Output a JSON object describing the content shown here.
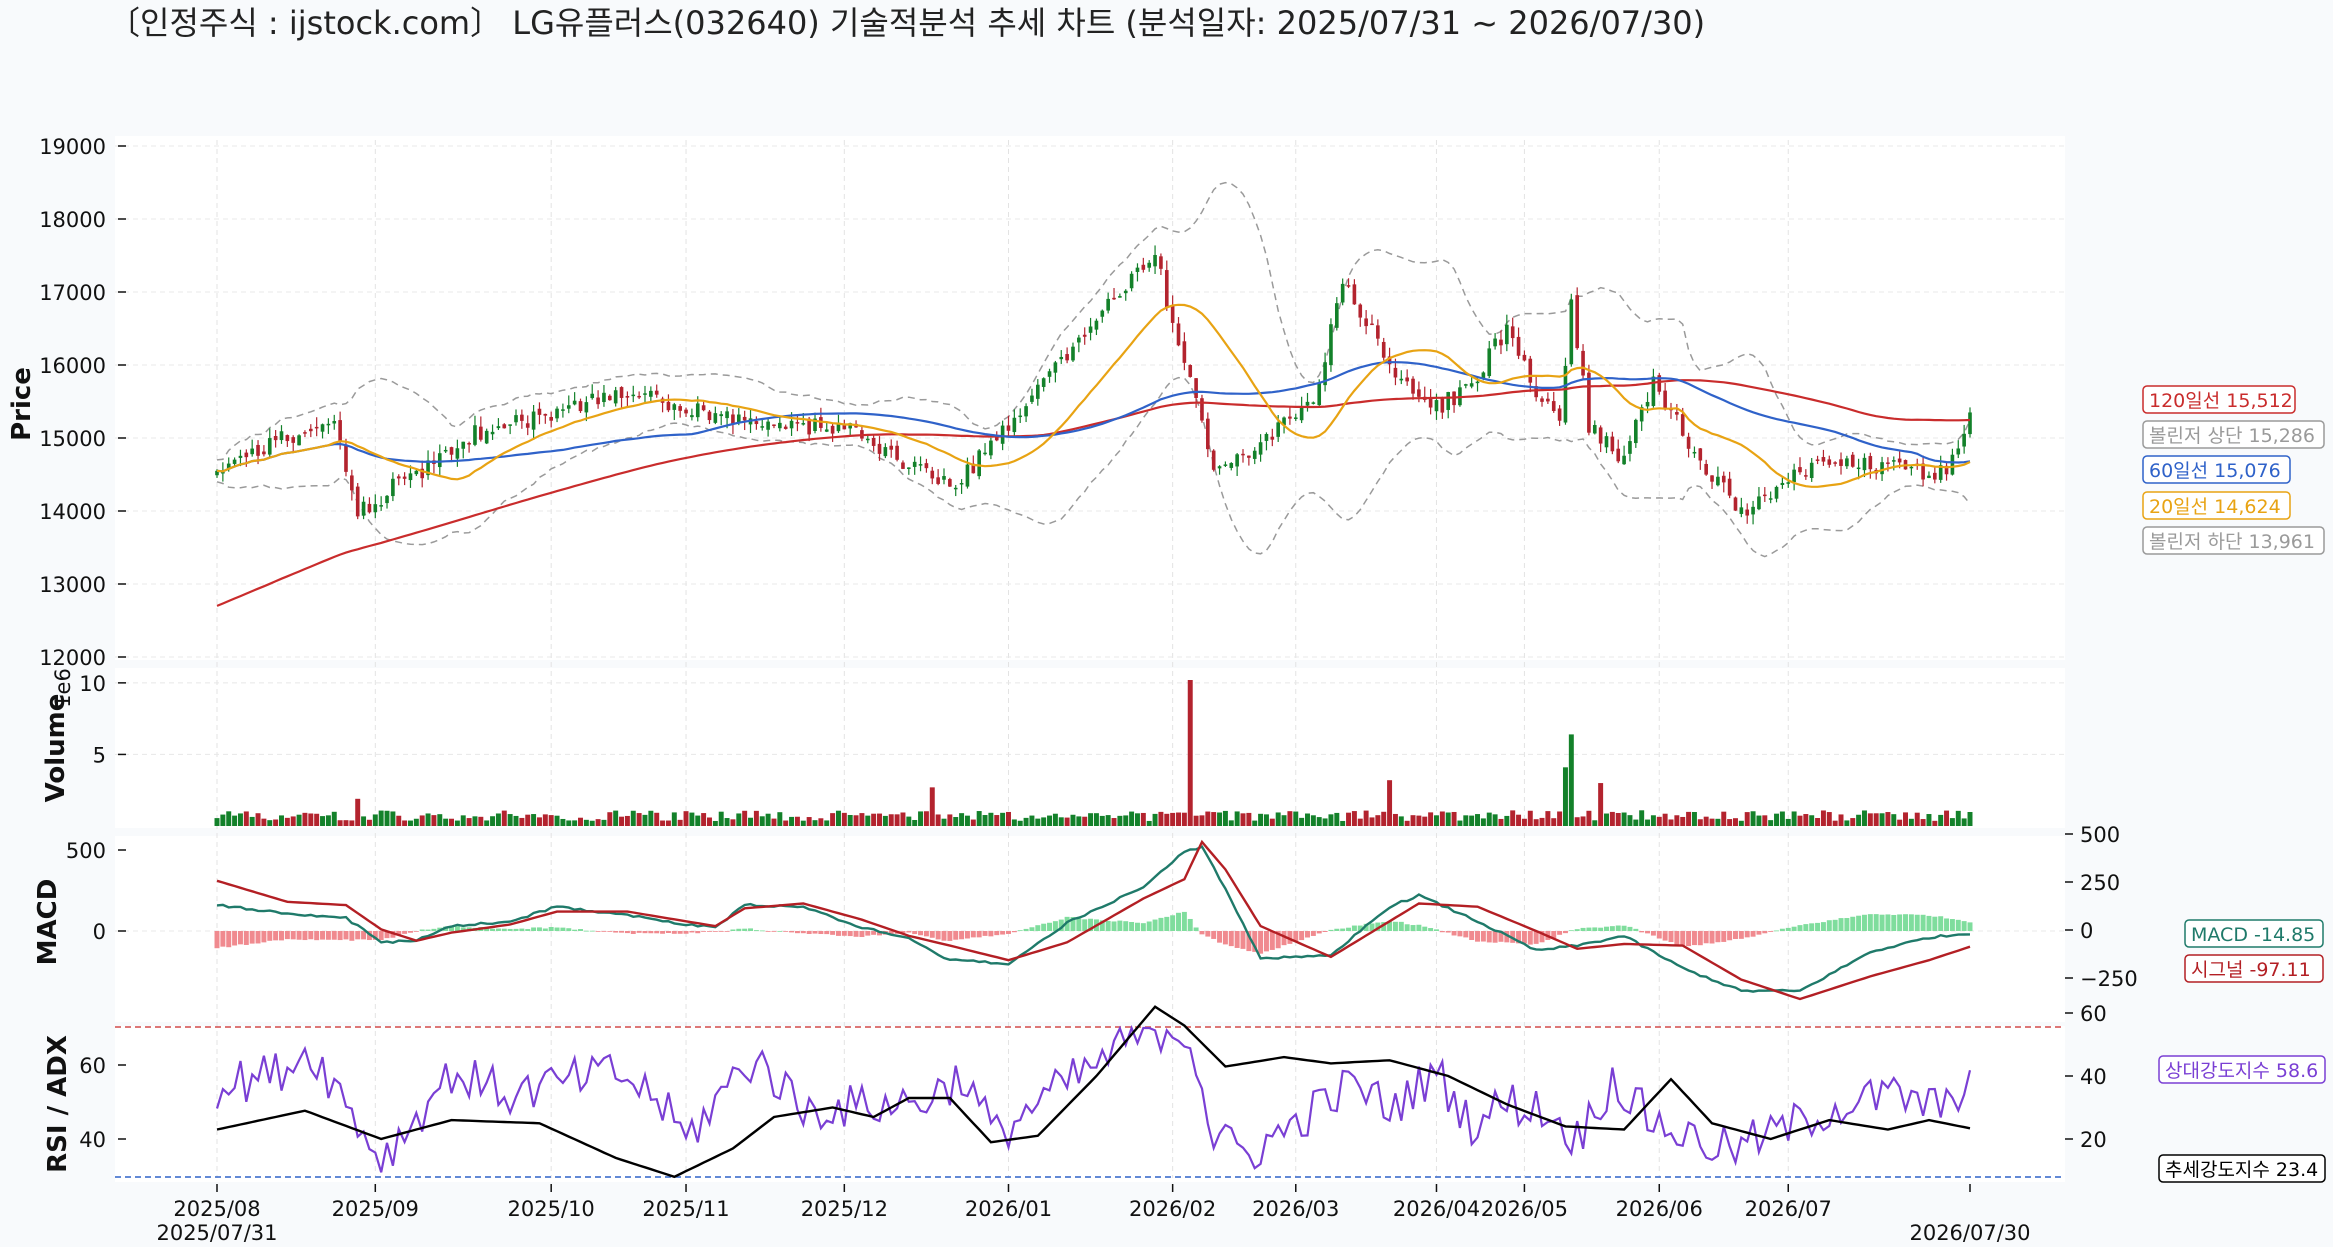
{
  "title": "〔인정주식 : ijstock.com〕 LG유플러스(032640) 기술적분석 추세 차트 (분석일자: 2025/07/31 ~ 2026/07/30)",
  "colors": {
    "up": "#13812a",
    "down": "#b3232e",
    "ma20": "#e8a313",
    "ma60": "#2f62c9",
    "ma120": "#c92c2c",
    "boll": "#9a9a9a",
    "macd": "#1f7a6a",
    "signal": "#b31f24",
    "hist_pos": "#7fdd9d",
    "hist_neg": "#f08a8f",
    "rsi": "#7a3fd4",
    "adx": "#000000",
    "upper_ref": "#d24a4a",
    "lower_ref": "#2f62c9"
  },
  "chart_data": [
    {
      "type": "candlestick",
      "ylabel": "Price",
      "ylim": [
        12000,
        19000
      ],
      "yticks": [
        "12000",
        "13000",
        "14000",
        "15000",
        "16000",
        "17000",
        "18000",
        "19000"
      ],
      "start_date": "2025/07/31",
      "end_date": "2026/07/30",
      "key_points": [
        {
          "x": 0,
          "close": 14600
        },
        {
          "x": 20,
          "close": 15300
        },
        {
          "x": 24,
          "close": 14000
        },
        {
          "x": 45,
          "close": 15100
        },
        {
          "x": 70,
          "close": 15600
        },
        {
          "x": 92,
          "close": 15200
        },
        {
          "x": 108,
          "close": 15150
        },
        {
          "x": 125,
          "close": 14300
        },
        {
          "x": 140,
          "close": 15600
        },
        {
          "x": 150,
          "close": 16700
        },
        {
          "x": 160,
          "close": 17500
        },
        {
          "x": 165,
          "close": 16000
        },
        {
          "x": 170,
          "close": 14600
        },
        {
          "x": 180,
          "close": 15000
        },
        {
          "x": 188,
          "close": 15700
        },
        {
          "x": 192,
          "close": 17200
        },
        {
          "x": 200,
          "close": 16000
        },
        {
          "x": 208,
          "close": 15400
        },
        {
          "x": 214,
          "close": 15700
        },
        {
          "x": 220,
          "close": 16500
        },
        {
          "x": 225,
          "close": 15600
        },
        {
          "x": 229,
          "close": 15300
        },
        {
          "x": 231,
          "close": 16900
        },
        {
          "x": 234,
          "close": 15200
        },
        {
          "x": 240,
          "close": 14700
        },
        {
          "x": 245,
          "close": 15800
        },
        {
          "x": 252,
          "close": 14800
        },
        {
          "x": 260,
          "close": 14000
        },
        {
          "x": 268,
          "close": 14400
        },
        {
          "x": 275,
          "close": 14700
        },
        {
          "x": 285,
          "close": 14600
        },
        {
          "x": 295,
          "close": 14500
        },
        {
          "x": 299,
          "close": 15350
        }
      ],
      "series": [
        {
          "name": "120일선",
          "last": 15512
        },
        {
          "name": "볼린저 상단",
          "last": 15286
        },
        {
          "name": "60일선",
          "last": 15076
        },
        {
          "name": "20일선",
          "last": 14624
        },
        {
          "name": "볼린저 하단",
          "last": 13961
        }
      ]
    },
    {
      "type": "bar",
      "ylabel": "Volume",
      "exponent_label": "1e6",
      "ylim": [
        0,
        10.5
      ],
      "yticks": [
        "5",
        "10"
      ],
      "spikes": [
        {
          "x": 24,
          "value": 1.9
        },
        {
          "x": 122,
          "value": 2.7
        },
        {
          "x": 166,
          "value": 10.2
        },
        {
          "x": 200,
          "value": 3.2
        },
        {
          "x": 230,
          "value": 4.1
        },
        {
          "x": 231,
          "value": 6.4
        },
        {
          "x": 236,
          "value": 3.0
        }
      ]
    },
    {
      "type": "line",
      "ylabel": "MACD",
      "ylim": [
        -370,
        580
      ],
      "left_yticks": [
        "0",
        "500"
      ],
      "right_yticks": [
        "−250",
        "0",
        "250",
        "500"
      ],
      "key_points": [
        {
          "x": 0,
          "macd": 160,
          "signal": 310
        },
        {
          "x": 12,
          "macd": 110,
          "signal": 180
        },
        {
          "x": 22,
          "macd": 80,
          "signal": 160
        },
        {
          "x": 28,
          "macd": -70,
          "signal": 10
        },
        {
          "x": 34,
          "macd": -60,
          "signal": -60
        },
        {
          "x": 40,
          "macd": 30,
          "signal": -10
        },
        {
          "x": 50,
          "macd": 60,
          "signal": 40
        },
        {
          "x": 58,
          "macd": 150,
          "signal": 120
        },
        {
          "x": 70,
          "macd": 100,
          "signal": 120
        },
        {
          "x": 80,
          "macd": 40,
          "signal": 60
        },
        {
          "x": 85,
          "macd": 20,
          "signal": 30
        },
        {
          "x": 90,
          "macd": 160,
          "signal": 140
        },
        {
          "x": 100,
          "macd": 150,
          "signal": 170
        },
        {
          "x": 110,
          "macd": 20,
          "signal": 70
        },
        {
          "x": 118,
          "macd": -40,
          "signal": -30
        },
        {
          "x": 125,
          "macd": -180,
          "signal": -90
        },
        {
          "x": 135,
          "macd": -200,
          "signal": -180
        },
        {
          "x": 145,
          "macd": 50,
          "signal": -70
        },
        {
          "x": 158,
          "macd": 270,
          "signal": 200
        },
        {
          "x": 165,
          "macd": 490,
          "signal": 320
        },
        {
          "x": 168,
          "macd": 520,
          "signal": 550
        },
        {
          "x": 172,
          "macd": 260,
          "signal": 380
        },
        {
          "x": 178,
          "macd": -170,
          "signal": 30
        },
        {
          "x": 190,
          "macd": -150,
          "signal": -160
        },
        {
          "x": 200,
          "macd": 150,
          "signal": 60
        },
        {
          "x": 205,
          "macd": 220,
          "signal": 170
        },
        {
          "x": 215,
          "macd": 60,
          "signal": 150
        },
        {
          "x": 225,
          "macd": -120,
          "signal": 0
        },
        {
          "x": 232,
          "macd": -90,
          "signal": -110
        },
        {
          "x": 240,
          "macd": -30,
          "signal": -80
        },
        {
          "x": 250,
          "macd": -230,
          "signal": -90
        },
        {
          "x": 260,
          "macd": -370,
          "signal": -300
        },
        {
          "x": 270,
          "macd": -370,
          "signal": -420
        },
        {
          "x": 282,
          "macd": -130,
          "signal": -280
        },
        {
          "x": 292,
          "macd": -40,
          "signal": -180
        },
        {
          "x": 299,
          "macd": -15,
          "signal": -97
        }
      ],
      "series": [
        {
          "name": "MACD",
          "last": -14.85
        },
        {
          "name": "시그널",
          "last": -97.11
        }
      ]
    },
    {
      "type": "line",
      "ylabel": "RSI / ADX",
      "left_ylim": [
        29,
        71
      ],
      "left_yticks": [
        "40",
        "60"
      ],
      "right_ylim": [
        7,
        69
      ],
      "right_yticks": [
        "20",
        "40",
        "60"
      ],
      "upper_ref": 70,
      "lower_ref": 30,
      "rsi_key_points": [
        {
          "x": 0,
          "v": 54
        },
        {
          "x": 10,
          "v": 58
        },
        {
          "x": 16,
          "v": 64
        },
        {
          "x": 22,
          "v": 50
        },
        {
          "x": 28,
          "v": 34
        },
        {
          "x": 40,
          "v": 58
        },
        {
          "x": 50,
          "v": 52
        },
        {
          "x": 58,
          "v": 55
        },
        {
          "x": 68,
          "v": 58
        },
        {
          "x": 75,
          "v": 51
        },
        {
          "x": 80,
          "v": 40
        },
        {
          "x": 88,
          "v": 56
        },
        {
          "x": 92,
          "v": 62
        },
        {
          "x": 100,
          "v": 48
        },
        {
          "x": 110,
          "v": 49
        },
        {
          "x": 120,
          "v": 50
        },
        {
          "x": 127,
          "v": 57
        },
        {
          "x": 133,
          "v": 41
        },
        {
          "x": 140,
          "v": 50
        },
        {
          "x": 150,
          "v": 60
        },
        {
          "x": 157,
          "v": 68
        },
        {
          "x": 162,
          "v": 70
        },
        {
          "x": 166,
          "v": 68
        },
        {
          "x": 170,
          "v": 40
        },
        {
          "x": 176,
          "v": 36
        },
        {
          "x": 182,
          "v": 42
        },
        {
          "x": 188,
          "v": 49
        },
        {
          "x": 194,
          "v": 55
        },
        {
          "x": 200,
          "v": 48
        },
        {
          "x": 208,
          "v": 58
        },
        {
          "x": 214,
          "v": 44
        },
        {
          "x": 220,
          "v": 50
        },
        {
          "x": 226,
          "v": 48
        },
        {
          "x": 232,
          "v": 40
        },
        {
          "x": 238,
          "v": 56
        },
        {
          "x": 244,
          "v": 46
        },
        {
          "x": 250,
          "v": 41
        },
        {
          "x": 258,
          "v": 37
        },
        {
          "x": 266,
          "v": 42
        },
        {
          "x": 275,
          "v": 48
        },
        {
          "x": 285,
          "v": 52
        },
        {
          "x": 295,
          "v": 48
        },
        {
          "x": 299,
          "v": 58.6
        }
      ],
      "adx_key_points": [
        {
          "x": 0,
          "v": 23
        },
        {
          "x": 15,
          "v": 29
        },
        {
          "x": 28,
          "v": 20
        },
        {
          "x": 40,
          "v": 26
        },
        {
          "x": 55,
          "v": 25
        },
        {
          "x": 68,
          "v": 14
        },
        {
          "x": 78,
          "v": 8
        },
        {
          "x": 88,
          "v": 17
        },
        {
          "x": 95,
          "v": 27
        },
        {
          "x": 105,
          "v": 30
        },
        {
          "x": 112,
          "v": 27
        },
        {
          "x": 118,
          "v": 33
        },
        {
          "x": 125,
          "v": 33
        },
        {
          "x": 132,
          "v": 19
        },
        {
          "x": 140,
          "v": 21
        },
        {
          "x": 150,
          "v": 40
        },
        {
          "x": 160,
          "v": 62
        },
        {
          "x": 165,
          "v": 56
        },
        {
          "x": 172,
          "v": 43
        },
        {
          "x": 182,
          "v": 46
        },
        {
          "x": 190,
          "v": 44
        },
        {
          "x": 200,
          "v": 45
        },
        {
          "x": 210,
          "v": 40
        },
        {
          "x": 220,
          "v": 31
        },
        {
          "x": 230,
          "v": 24
        },
        {
          "x": 240,
          "v": 23
        },
        {
          "x": 248,
          "v": 39
        },
        {
          "x": 255,
          "v": 25
        },
        {
          "x": 265,
          "v": 20
        },
        {
          "x": 275,
          "v": 26
        },
        {
          "x": 285,
          "v": 23
        },
        {
          "x": 292,
          "v": 26
        },
        {
          "x": 299,
          "v": 23.4
        }
      ],
      "series": [
        {
          "name": "상대강도지수",
          "last": 58.6
        },
        {
          "name": "추세강도지수",
          "last": 23.4
        }
      ]
    }
  ],
  "xaxis": {
    "ticks": [
      {
        "label": "2025/08",
        "x": 0
      },
      {
        "label": "2025/09",
        "x": 27
      },
      {
        "label": "2025/10",
        "x": 57
      },
      {
        "label": "2025/11",
        "x": 80
      },
      {
        "label": "2025/12",
        "x": 107
      },
      {
        "label": "2026/01",
        "x": 135
      },
      {
        "label": "2026/02",
        "x": 163
      },
      {
        "label": "2026/03",
        "x": 184
      },
      {
        "label": "2026/04",
        "x": 208
      },
      {
        "label": "2026/05",
        "x": 223
      },
      {
        "label": "2026/06",
        "x": 246
      },
      {
        "label": "2026/07",
        "x": 268
      }
    ],
    "start_label": "2025/07/31",
    "end_label": "2026/07/30",
    "n": 300
  },
  "tags": {
    "ma120": "120일선 15,512",
    "boll_up": "볼린저 상단 15,286",
    "ma60": "60일선 15,076",
    "ma20": "20일선 14,624",
    "boll_dn": "볼린저 하단 13,961",
    "macd": "MACD -14.85",
    "signal": "시그널 -97.11",
    "rsi": "상대강도지수 58.6",
    "adx": "추세강도지수 23.4"
  }
}
